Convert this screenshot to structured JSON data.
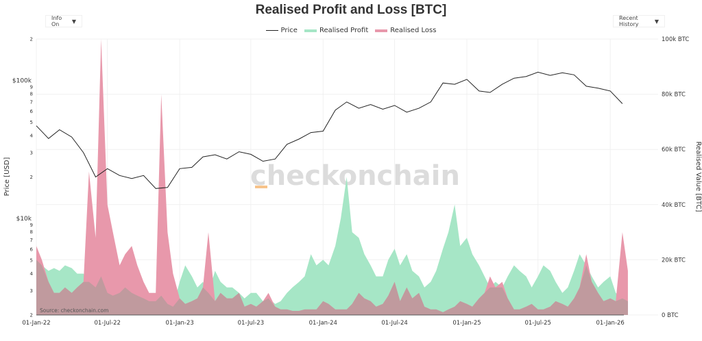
{
  "title": "Realised Profit and Loss [BTC]",
  "controls": {
    "info": "Info On",
    "history": "Recent History",
    "arrow": "▼"
  },
  "legend": [
    {
      "label": "Price",
      "color": "#222222"
    },
    {
      "label": "Realised Profit",
      "color": "#a6e6c6"
    },
    {
      "label": "Realised Loss",
      "color": "#e898ab"
    }
  ],
  "watermark": "checkonchain",
  "source": "Source: checkonchain.com",
  "colors": {
    "profit": "#a6e6c6",
    "loss": "#e898ab",
    "overlap": "#c09a9e",
    "price": "#222222"
  },
  "chart_data": {
    "type": "area",
    "title": "Realised Profit and Loss [BTC]",
    "x_ticks": [
      "01-Jan-22",
      "01-Jul-22",
      "01-Jan-23",
      "01-Jul-23",
      "01-Jan-24",
      "01-Jul-24",
      "01-Jan-25",
      "01-Jul-25",
      "01-Jan-26"
    ],
    "y_left": {
      "label": "Price [USD]",
      "scale": "log",
      "range": [
        2000,
        200000
      ],
      "major_ticks": [
        "$10k",
        "$100k"
      ],
      "minor_ticks": [
        "2",
        "3",
        "4",
        "5",
        "6",
        "7",
        "8",
        "9",
        "2",
        "3",
        "4",
        "5",
        "6",
        "7",
        "8",
        "9",
        "2"
      ]
    },
    "y_right": {
      "label": "Realised Value [BTC]",
      "range": [
        0,
        100000
      ],
      "ticks": [
        "0 BTC",
        "20k BTC",
        "40k BTC",
        "60k BTC",
        "80k BTC",
        "100k BTC"
      ]
    },
    "grid": true,
    "legend_position": "top",
    "price": {
      "name": "Price",
      "dates": [
        "2022-01",
        "2022-02",
        "2022-03",
        "2022-04",
        "2022-05",
        "2022-06",
        "2022-07",
        "2022-08",
        "2022-09",
        "2022-10",
        "2022-11",
        "2022-12",
        "2023-01",
        "2023-02",
        "2023-03",
        "2023-04",
        "2023-05",
        "2023-06",
        "2023-07",
        "2023-08",
        "2023-09",
        "2023-10",
        "2023-11",
        "2023-12",
        "2024-01",
        "2024-02",
        "2024-03",
        "2024-04",
        "2024-05",
        "2024-06",
        "2024-07",
        "2024-08",
        "2024-09",
        "2024-10",
        "2024-11",
        "2024-12",
        "2025-01",
        "2025-02",
        "2025-03",
        "2025-04",
        "2025-05",
        "2025-06",
        "2025-07",
        "2025-08",
        "2025-09",
        "2025-10",
        "2025-11",
        "2025-12",
        "2026-01",
        "2026-02"
      ],
      "values": [
        47000,
        38000,
        44000,
        39000,
        30000,
        20000,
        23000,
        20500,
        19500,
        20500,
        16500,
        16800,
        23000,
        23500,
        28000,
        29000,
        27000,
        30500,
        29200,
        26000,
        27000,
        34500,
        37700,
        42000,
        43000,
        61000,
        70000,
        63000,
        67000,
        62000,
        66000,
        59000,
        63000,
        70000,
        96000,
        94000,
        102000,
        84000,
        82000,
        94000,
        104000,
        107000,
        115000,
        109000,
        114000,
        110000,
        91000,
        88000,
        84000,
        68000
      ]
    },
    "semi_monthly_start": "2022-01-01",
    "series": [
      {
        "name": "Realised Profit",
        "values": [
          20,
          18,
          16,
          17,
          16,
          18,
          17,
          15,
          15,
          12,
          10,
          14,
          8,
          7,
          8,
          10,
          8,
          7,
          6,
          5,
          5,
          7,
          4,
          3,
          12,
          18,
          14,
          10,
          12,
          8,
          16,
          12,
          10,
          10,
          8,
          6,
          8,
          8,
          5,
          6,
          4,
          5,
          8,
          10,
          12,
          14,
          22,
          18,
          20,
          18,
          25,
          35,
          50,
          30,
          28,
          22,
          18,
          14,
          14,
          20,
          24,
          18,
          22,
          16,
          14,
          10,
          12,
          16,
          24,
          30,
          40,
          25,
          28,
          22,
          18,
          14,
          10,
          12,
          10,
          14,
          18,
          16,
          14,
          10,
          14,
          18,
          16,
          12,
          8,
          10,
          16,
          22,
          18,
          14,
          10,
          12,
          14,
          8,
          6,
          5
        ]
      },
      {
        "name": "Realised Loss",
        "values": [
          25,
          20,
          12,
          8,
          8,
          10,
          8,
          10,
          12,
          52,
          28,
          100,
          40,
          30,
          18,
          22,
          25,
          18,
          12,
          8,
          8,
          80,
          30,
          15,
          6,
          4,
          5,
          6,
          10,
          30,
          5,
          8,
          6,
          6,
          8,
          3,
          4,
          3,
          5,
          8,
          3,
          2,
          2,
          1.5,
          1.5,
          2,
          2,
          2,
          5,
          4,
          2,
          2,
          2,
          4,
          8,
          6,
          5,
          3,
          4,
          7,
          12,
          5,
          10,
          6,
          8,
          3,
          2,
          2,
          1,
          2,
          3,
          5,
          4,
          3,
          6,
          8,
          14,
          10,
          12,
          6,
          2,
          2,
          3,
          4,
          2,
          2,
          3,
          5,
          4,
          3,
          6,
          10,
          22,
          12,
          8,
          5,
          6,
          5,
          30,
          16
        ]
      }
    ],
    "series_units": "thousand BTC"
  }
}
